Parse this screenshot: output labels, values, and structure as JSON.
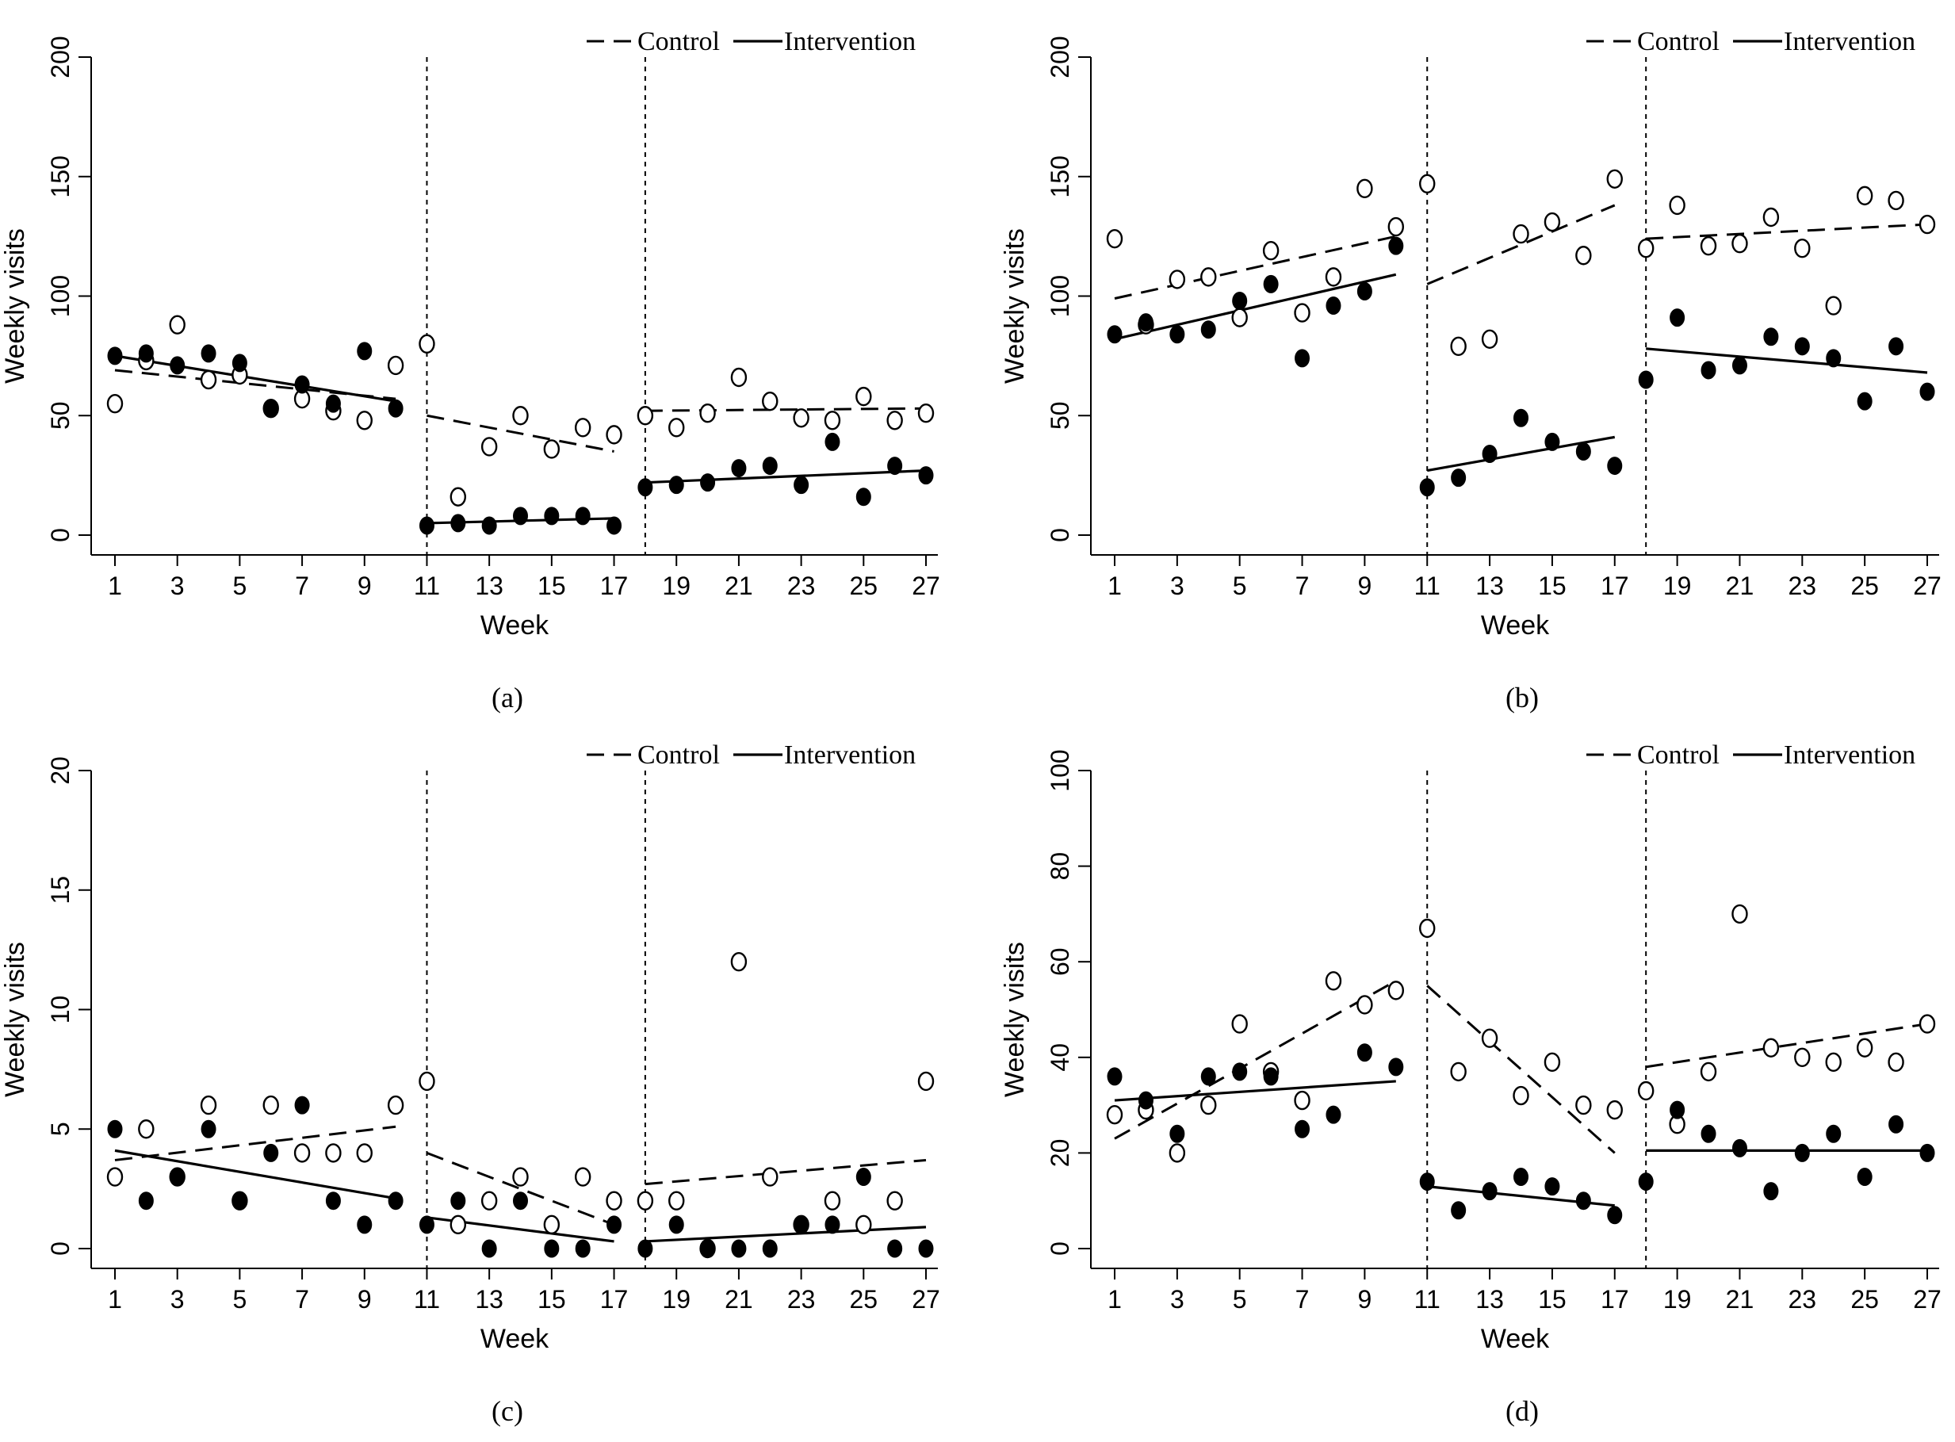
{
  "legend": {
    "control": "Control",
    "intervention": "Intervention"
  },
  "chart_data": [
    {
      "type": "scatter",
      "caption": "(a)",
      "xlabel": "Week",
      "ylabel": "Weekly visits",
      "xlim": [
        1,
        27
      ],
      "ylim": [
        0,
        200
      ],
      "xticks": [
        1,
        3,
        5,
        7,
        9,
        11,
        13,
        15,
        17,
        19,
        21,
        23,
        25,
        27
      ],
      "xtick_labels": [
        "1",
        "3",
        "5",
        "7",
        "9",
        "11",
        "13",
        "15",
        "17",
        "19",
        "21",
        "23",
        "25",
        "27"
      ],
      "yticks": [
        0,
        50,
        100,
        150,
        200
      ],
      "ytick_labels": [
        "0",
        "50",
        "100",
        "150",
        "200"
      ],
      "breakpoints": [
        11,
        18
      ],
      "series": [
        {
          "name": "Control",
          "x": [
            1,
            2,
            3,
            4,
            5,
            6,
            7,
            8,
            9,
            10,
            11,
            12,
            13,
            14,
            15,
            16,
            17,
            18,
            19,
            20,
            21,
            22,
            23,
            24,
            25,
            26,
            27
          ],
          "values": [
            55,
            73,
            88,
            65,
            67,
            53,
            57,
            52,
            48,
            71,
            80,
            16,
            37,
            50,
            36,
            45,
            42,
            50,
            45,
            51,
            66,
            56,
            49,
            48,
            58,
            48,
            51
          ],
          "fit": [
            [
              1,
              69
            ],
            [
              10,
              57
            ],
            [
              11,
              50
            ],
            [
              17,
              35
            ],
            [
              18,
              52
            ],
            [
              27,
              53
            ]
          ]
        },
        {
          "name": "Intervention",
          "x": [
            1,
            2,
            3,
            4,
            5,
            6,
            7,
            8,
            9,
            10,
            11,
            12,
            13,
            14,
            15,
            16,
            17,
            18,
            19,
            20,
            21,
            22,
            23,
            24,
            25,
            26,
            27
          ],
          "values": [
            75,
            76,
            71,
            76,
            72,
            53,
            63,
            55,
            77,
            53,
            4,
            5,
            4,
            8,
            8,
            8,
            4,
            20,
            21,
            22,
            28,
            29,
            21,
            39,
            16,
            29,
            25
          ],
          "fit": [
            [
              1,
              75
            ],
            [
              10,
              56
            ],
            [
              11,
              5
            ],
            [
              17,
              7
            ],
            [
              18,
              22
            ],
            [
              27,
              27
            ]
          ]
        }
      ]
    },
    {
      "type": "scatter",
      "caption": "(b)",
      "xlabel": "Week",
      "ylabel": "Weekly visits",
      "xlim": [
        1,
        27
      ],
      "ylim": [
        0,
        200
      ],
      "xticks": [
        1,
        3,
        5,
        7,
        9,
        11,
        13,
        15,
        17,
        19,
        21,
        23,
        25,
        27
      ],
      "xtick_labels": [
        "1",
        "3",
        "5",
        "7",
        "9",
        "11",
        "13",
        "15",
        "17",
        "19",
        "21",
        "23",
        "25",
        "27"
      ],
      "yticks": [
        0,
        50,
        100,
        150,
        200
      ],
      "ytick_labels": [
        "0",
        "50",
        "100",
        "150",
        "200"
      ],
      "breakpoints": [
        11,
        18
      ],
      "series": [
        {
          "name": "Control",
          "x": [
            1,
            2,
            3,
            4,
            5,
            6,
            7,
            8,
            9,
            10,
            11,
            12,
            13,
            14,
            15,
            16,
            17,
            18,
            19,
            20,
            21,
            22,
            23,
            24,
            25,
            26,
            27
          ],
          "values": [
            124,
            88,
            107,
            108,
            91,
            119,
            93,
            108,
            145,
            129,
            147,
            79,
            82,
            126,
            131,
            117,
            149,
            120,
            138,
            121,
            122,
            133,
            120,
            96,
            142,
            140,
            130
          ],
          "fit": [
            [
              1,
              99
            ],
            [
              10,
              125
            ],
            [
              11,
              105
            ],
            [
              17,
              138
            ],
            [
              18,
              124
            ],
            [
              27,
              130
            ]
          ]
        },
        {
          "name": "Intervention",
          "x": [
            1,
            2,
            3,
            4,
            5,
            6,
            7,
            8,
            9,
            10,
            11,
            12,
            13,
            14,
            15,
            16,
            17,
            18,
            19,
            20,
            21,
            22,
            23,
            24,
            25,
            26,
            27
          ],
          "values": [
            84,
            89,
            84,
            86,
            98,
            105,
            74,
            96,
            102,
            121,
            20,
            24,
            34,
            49,
            39,
            35,
            29,
            65,
            91,
            69,
            71,
            83,
            79,
            74,
            56,
            79,
            60
          ],
          "fit": [
            [
              1,
              82
            ],
            [
              10,
              109
            ],
            [
              11,
              27
            ],
            [
              17,
              41
            ],
            [
              18,
              78
            ],
            [
              27,
              68
            ]
          ]
        }
      ]
    },
    {
      "type": "scatter",
      "caption": "(c)",
      "xlabel": "Week",
      "ylabel": "Weekly visits",
      "xlim": [
        1,
        27
      ],
      "ylim": [
        0,
        20
      ],
      "xticks": [
        1,
        3,
        5,
        7,
        9,
        11,
        13,
        15,
        17,
        19,
        21,
        23,
        25,
        27
      ],
      "xtick_labels": [
        "1",
        "3",
        "5",
        "7",
        "9",
        "11",
        "13",
        "15",
        "17",
        "19",
        "21",
        "23",
        "25",
        "27"
      ],
      "yticks": [
        0,
        5,
        10,
        15,
        20
      ],
      "ytick_labels": [
        "0",
        "5",
        "10",
        "15",
        "20"
      ],
      "breakpoints": [
        11,
        18
      ],
      "series": [
        {
          "name": "Control",
          "x": [
            1,
            2,
            3,
            4,
            5,
            6,
            7,
            8,
            9,
            10,
            11,
            12,
            13,
            14,
            15,
            16,
            17,
            18,
            19,
            20,
            21,
            22,
            23,
            24,
            25,
            26,
            27
          ],
          "values": [
            3,
            5,
            3,
            6,
            2,
            6,
            4,
            4,
            4,
            6,
            7,
            1,
            2,
            3,
            1,
            3,
            2,
            2,
            2,
            0,
            12,
            3,
            1,
            2,
            1,
            2,
            7
          ],
          "fit": [
            [
              1,
              3.7
            ],
            [
              10,
              5.1
            ],
            [
              11,
              4.0
            ],
            [
              17,
              1.0
            ],
            [
              18,
              2.7
            ],
            [
              27,
              3.7
            ]
          ]
        },
        {
          "name": "Intervention",
          "x": [
            1,
            2,
            3,
            4,
            5,
            6,
            7,
            8,
            9,
            10,
            11,
            12,
            13,
            14,
            15,
            16,
            17,
            18,
            19,
            20,
            21,
            22,
            23,
            24,
            25,
            26,
            27
          ],
          "values": [
            5,
            2,
            3,
            5,
            2,
            4,
            6,
            2,
            1,
            2,
            1,
            2,
            0,
            2,
            0,
            0,
            1,
            0,
            1,
            0,
            0,
            0,
            1,
            1,
            3,
            0,
            0
          ],
          "fit": [
            [
              1,
              4.1
            ],
            [
              10,
              2.1
            ],
            [
              11,
              1.3
            ],
            [
              17,
              0.3
            ],
            [
              18,
              0.3
            ],
            [
              27,
              0.9
            ]
          ]
        }
      ]
    },
    {
      "type": "scatter",
      "caption": "(d)",
      "xlabel": "Week",
      "ylabel": "Weekly visits",
      "xlim": [
        1,
        27
      ],
      "ylim": [
        0,
        100
      ],
      "xticks": [
        1,
        3,
        5,
        7,
        9,
        11,
        13,
        15,
        17,
        19,
        21,
        23,
        25,
        27
      ],
      "xtick_labels": [
        "1",
        "3",
        "5",
        "7",
        "9",
        "11",
        "13",
        "15",
        "17",
        "19",
        "21",
        "23",
        "25",
        "27"
      ],
      "yticks": [
        0,
        20,
        40,
        60,
        80,
        100
      ],
      "ytick_labels": [
        "0",
        "20",
        "40",
        "60",
        "80",
        "100"
      ],
      "breakpoints": [
        11,
        18
      ],
      "series": [
        {
          "name": "Control",
          "x": [
            1,
            2,
            3,
            4,
            5,
            6,
            7,
            8,
            9,
            10,
            11,
            12,
            13,
            14,
            15,
            16,
            17,
            18,
            19,
            20,
            21,
            22,
            23,
            24,
            25,
            26,
            27
          ],
          "values": [
            28,
            29,
            20,
            30,
            47,
            37,
            31,
            56,
            51,
            54,
            67,
            37,
            44,
            32,
            39,
            30,
            29,
            33,
            26,
            37,
            70,
            42,
            40,
            39,
            42,
            39,
            47
          ],
          "fit": [
            [
              1,
              23
            ],
            [
              10,
              56
            ],
            [
              11,
              55
            ],
            [
              17,
              20
            ],
            [
              18,
              38
            ],
            [
              27,
              47
            ]
          ]
        },
        {
          "name": "Intervention",
          "x": [
            1,
            2,
            3,
            4,
            5,
            6,
            7,
            8,
            9,
            10,
            11,
            12,
            13,
            14,
            15,
            16,
            17,
            18,
            19,
            20,
            21,
            22,
            23,
            24,
            25,
            26,
            27
          ],
          "values": [
            36,
            31,
            24,
            36,
            37,
            36,
            25,
            28,
            41,
            38,
            14,
            8,
            12,
            15,
            13,
            10,
            7,
            14,
            29,
            24,
            21,
            12,
            20,
            24,
            15,
            26,
            20
          ],
          "fit": [
            [
              1,
              31
            ],
            [
              10,
              35
            ],
            [
              11,
              13
            ],
            [
              17,
              9
            ],
            [
              18,
              20.5
            ],
            [
              27,
              20.5
            ]
          ]
        }
      ]
    }
  ]
}
